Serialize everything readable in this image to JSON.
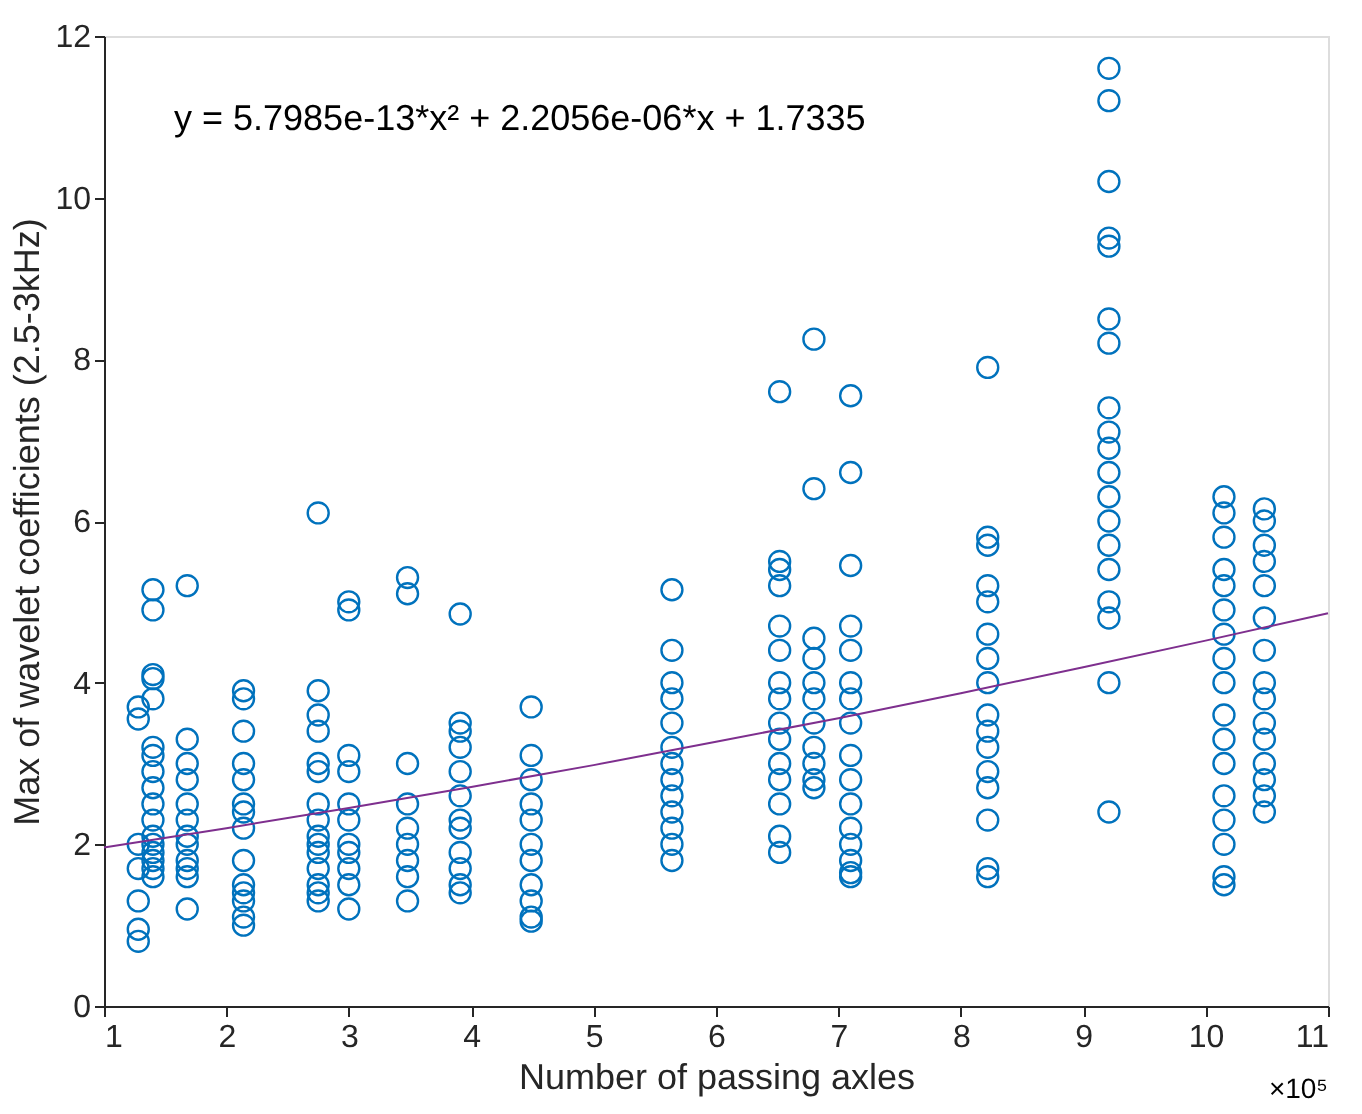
{
  "chart_data": {
    "type": "scatter",
    "xlabel": "Number of passing axles",
    "ylabel": "Max of wavelet coefficients (2.5-3kHz)",
    "annotations": [
      "y = 5.7985e-13*x² + 2.2056e-06*x + 1.7335",
      "×10⁵"
    ],
    "xlim": [
      1,
      11
    ],
    "xticks": [
      1,
      2,
      3,
      4,
      5,
      6,
      7,
      8,
      9,
      10,
      11
    ],
    "ylim": [
      0,
      12
    ],
    "yticks": [
      0,
      2,
      4,
      6,
      8,
      10,
      12
    ],
    "grid": false,
    "series": [
      {
        "type": "scatter",
        "color": "#0072bd",
        "marker": "circle",
        "x": [
          1.28,
          1.28,
          1.28,
          1.28,
          1.28,
          1.28,
          1.28,
          1.4,
          1.4,
          1.4,
          1.4,
          1.4,
          1.4,
          1.4,
          1.4,
          1.4,
          1.4,
          1.4,
          1.4,
          1.4,
          1.4,
          1.4,
          1.4,
          1.4,
          1.68,
          1.68,
          1.68,
          1.68,
          1.68,
          1.68,
          1.68,
          1.68,
          1.68,
          1.68,
          1.68,
          1.68,
          2.14,
          2.14,
          2.14,
          2.14,
          2.14,
          2.14,
          2.14,
          2.14,
          2.14,
          2.14,
          2.14,
          2.14,
          2.14,
          2.14,
          2.75,
          2.75,
          2.75,
          2.75,
          2.75,
          2.75,
          2.75,
          2.75,
          2.75,
          2.75,
          2.75,
          2.75,
          2.75,
          2.75,
          2.75,
          3.0,
          3.0,
          3.0,
          3.0,
          3.0,
          3.0,
          3.0,
          3.0,
          3.0,
          3.0,
          3.0,
          3.48,
          3.48,
          3.48,
          3.48,
          3.48,
          3.48,
          3.48,
          3.48,
          3.48,
          3.91,
          3.91,
          3.91,
          3.91,
          3.91,
          3.91,
          3.91,
          3.91,
          3.91,
          3.91,
          3.91,
          3.91,
          4.49,
          4.49,
          4.49,
          4.49,
          4.49,
          4.49,
          4.49,
          4.49,
          4.49,
          4.49,
          4.49,
          5.64,
          5.64,
          5.64,
          5.64,
          5.64,
          5.64,
          5.64,
          5.64,
          5.64,
          5.64,
          5.64,
          5.64,
          5.64,
          6.52,
          6.52,
          6.52,
          6.52,
          6.52,
          6.52,
          6.52,
          6.52,
          6.52,
          6.52,
          6.52,
          6.52,
          6.52,
          6.52,
          6.52,
          6.8,
          6.8,
          6.8,
          6.8,
          6.8,
          6.8,
          6.8,
          6.8,
          6.8,
          6.8,
          6.8,
          7.1,
          7.1,
          7.1,
          7.1,
          7.1,
          7.1,
          7.1,
          7.1,
          7.1,
          7.1,
          7.1,
          7.1,
          7.1,
          7.1,
          7.1,
          7.1,
          8.22,
          8.22,
          8.22,
          8.22,
          8.22,
          8.22,
          8.22,
          8.22,
          8.22,
          8.22,
          8.22,
          8.22,
          8.22,
          8.22,
          8.22,
          8.22,
          9.21,
          9.21,
          9.21,
          9.21,
          9.21,
          9.21,
          9.21,
          9.21,
          9.21,
          9.21,
          9.21,
          9.21,
          9.21,
          9.21,
          9.21,
          9.21,
          9.21,
          9.21,
          9.21,
          10.15,
          10.15,
          10.15,
          10.15,
          10.15,
          10.15,
          10.15,
          10.15,
          10.15,
          10.15,
          10.15,
          10.15,
          10.15,
          10.15,
          10.15,
          10.15,
          10.15,
          10.48,
          10.48,
          10.48,
          10.48,
          10.48,
          10.48,
          10.48,
          10.48,
          10.48,
          10.48,
          10.48,
          10.48,
          10.48,
          10.48,
          10.48
        ],
        "values": [
          3.7,
          3.55,
          2.0,
          1.7,
          1.3,
          0.95,
          0.8,
          5.15,
          4.9,
          4.1,
          4.05,
          3.8,
          3.2,
          3.1,
          2.9,
          2.7,
          2.5,
          2.3,
          2.1,
          2.0,
          1.9,
          1.8,
          1.7,
          1.6,
          5.2,
          3.3,
          3.0,
          2.8,
          2.5,
          2.3,
          2.1,
          2.0,
          1.8,
          1.7,
          1.6,
          1.2,
          3.9,
          3.8,
          3.4,
          3.0,
          2.8,
          2.5,
          2.4,
          2.2,
          1.8,
          1.5,
          1.4,
          1.3,
          1.1,
          1.0,
          6.1,
          3.9,
          3.6,
          3.4,
          3.0,
          2.9,
          2.5,
          2.3,
          2.1,
          2.0,
          1.9,
          1.7,
          1.5,
          1.4,
          1.3,
          5.0,
          4.9,
          3.1,
          2.9,
          2.5,
          2.3,
          2.0,
          1.9,
          1.7,
          1.5,
          1.2,
          5.3,
          5.1,
          3.0,
          2.5,
          2.2,
          2.0,
          1.8,
          1.6,
          1.3,
          4.85,
          3.5,
          3.4,
          3.2,
          2.9,
          2.6,
          2.3,
          2.2,
          1.9,
          1.7,
          1.5,
          1.4,
          3.7,
          3.1,
          2.8,
          2.5,
          2.3,
          2.0,
          1.8,
          1.5,
          1.3,
          1.1,
          1.05,
          5.15,
          4.4,
          4.0,
          3.8,
          3.5,
          3.2,
          3.0,
          2.8,
          2.6,
          2.4,
          2.2,
          2.0,
          1.8,
          7.6,
          5.5,
          5.4,
          5.2,
          4.7,
          4.4,
          4.0,
          3.8,
          3.5,
          3.3,
          3.0,
          2.8,
          2.5,
          2.1,
          1.9,
          8.25,
          6.4,
          4.55,
          4.3,
          4.0,
          3.8,
          3.5,
          3.2,
          3.0,
          2.8,
          2.7,
          7.55,
          6.6,
          5.45,
          4.7,
          4.4,
          4.0,
          3.8,
          3.5,
          3.1,
          2.8,
          2.5,
          2.2,
          2.0,
          1.8,
          1.65,
          1.6,
          7.9,
          5.8,
          5.7,
          5.2,
          5.0,
          4.6,
          4.3,
          4.0,
          3.6,
          3.4,
          3.2,
          2.9,
          2.7,
          2.3,
          1.7,
          1.6,
          11.6,
          11.2,
          10.2,
          9.5,
          9.4,
          8.5,
          8.2,
          7.4,
          7.1,
          6.9,
          6.6,
          6.3,
          6.0,
          5.7,
          5.4,
          5.0,
          4.8,
          4.0,
          2.4,
          6.3,
          6.1,
          5.8,
          5.4,
          5.2,
          4.9,
          4.6,
          4.3,
          4.0,
          3.6,
          3.3,
          3.0,
          2.6,
          2.3,
          2.0,
          1.6,
          1.5,
          6.15,
          6.0,
          5.7,
          5.5,
          5.2,
          4.8,
          4.4,
          4.0,
          3.8,
          3.5,
          3.3,
          3.0,
          2.8,
          2.6,
          2.4
        ]
      },
      {
        "type": "line",
        "color": "#7e2f8e",
        "line_style": "solid",
        "marker": "none",
        "x": [
          1,
          2,
          3,
          4,
          5,
          6,
          7,
          8,
          9,
          10,
          11
        ],
        "values": [
          1.96,
          2.2,
          2.45,
          2.71,
          2.98,
          3.27,
          3.56,
          3.87,
          4.19,
          4.52,
          4.86
        ]
      }
    ]
  }
}
